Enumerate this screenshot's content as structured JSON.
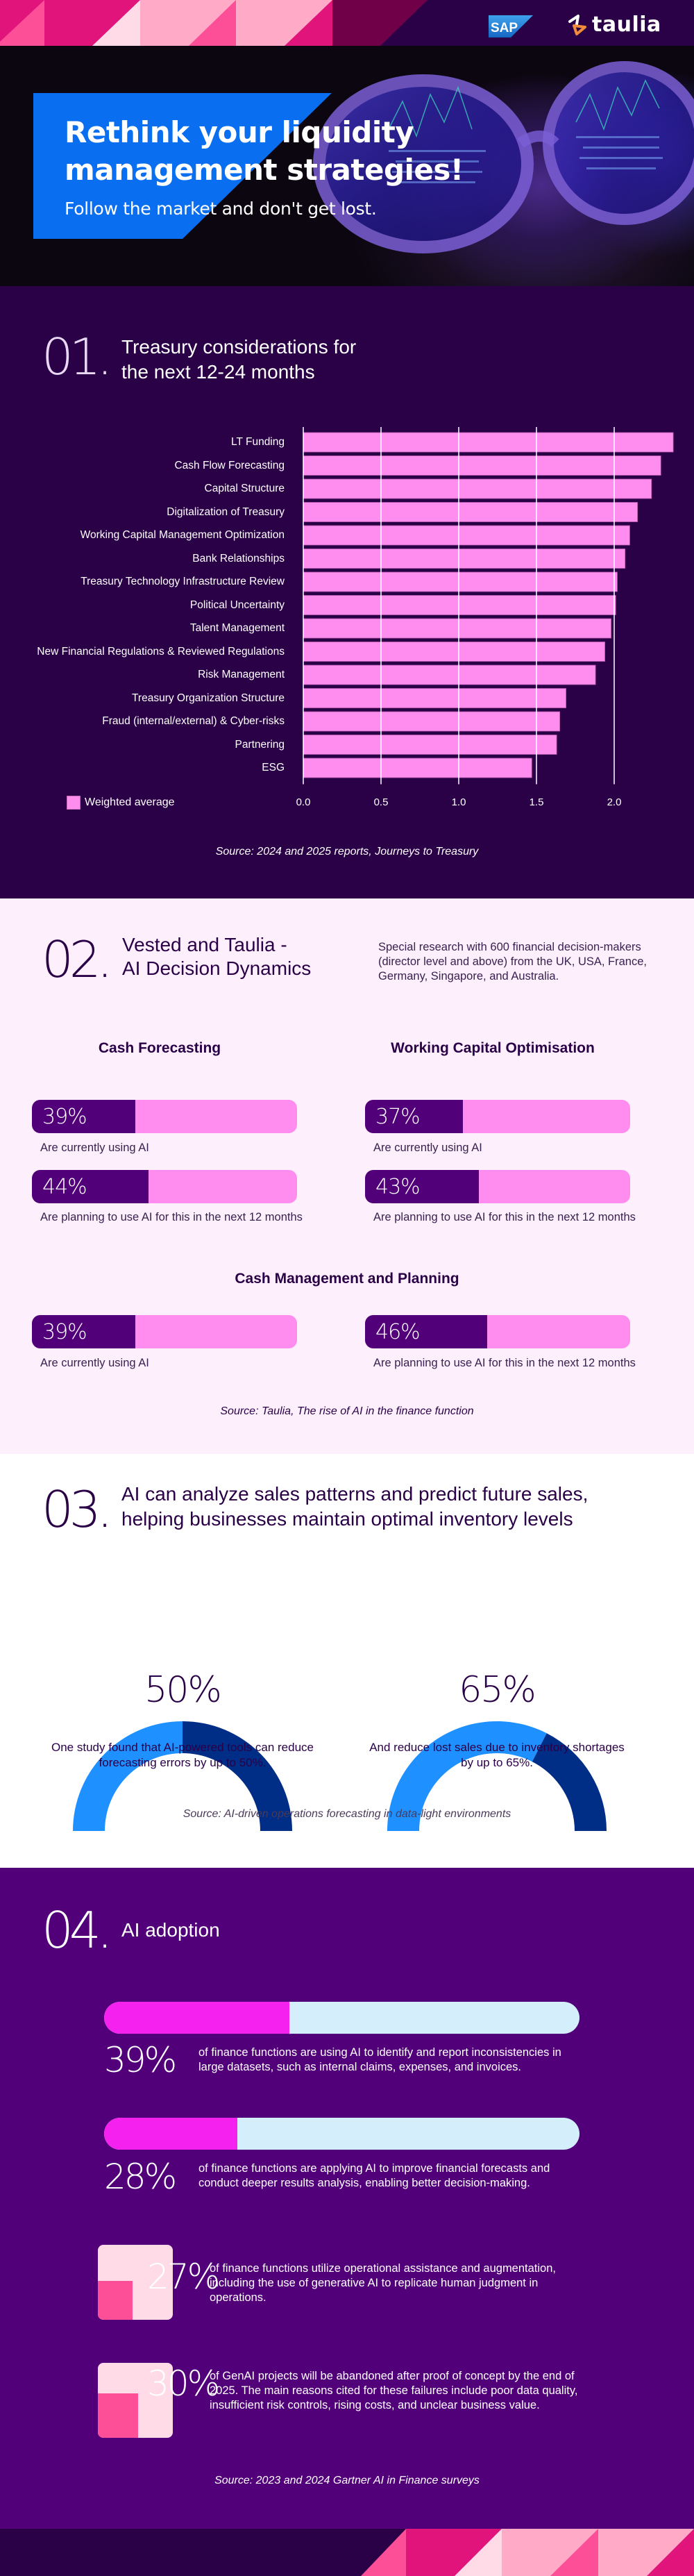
{
  "header": {
    "sap_logo": "SAP",
    "taulia_logo": "taulia",
    "colors": {
      "pink_dark": "#e0147a",
      "pink_mid": "#fc4f97",
      "pink_light": "#ffaac7",
      "pink_pale": "#ffdbe8",
      "maroon": "#700048",
      "navy": "#2a0047"
    }
  },
  "hero": {
    "title_line1": "Rethink your liquidity",
    "title_line2": "management strategies!",
    "subtitle": "Follow the market and don't get lost.",
    "accent": "#0a6ef0"
  },
  "section1": {
    "number": "01.",
    "title_line1": "Treasury considerations for",
    "title_line2": "the next 12-24 months",
    "source": "Source: 2024 and 2025 reports, Journeys to Treasury"
  },
  "chart_data": {
    "type": "bar",
    "orientation": "horizontal",
    "title": "Treasury considerations for the next 12-24 months",
    "categories": [
      "LT Funding",
      "Cash Flow Forecasting",
      "Capital Structure",
      "Digitalization of Treasury",
      "Working Capital Management Optimization",
      "Bank Relationships",
      "Treasury Technology Infrastructure Review",
      "Political Uncertainty",
      "Talent Management",
      "New Financial Regulations & Reviewed Regulations",
      "Risk Management",
      "Treasury Organization Structure",
      "Fraud (internal/external) & Cyber-risks",
      "Partnering",
      "ESG"
    ],
    "series": [
      {
        "name": "Weighted average",
        "color": "#ff8cef",
        "values": [
          2.38,
          2.3,
          2.24,
          2.15,
          2.1,
          2.07,
          2.02,
          2.01,
          1.98,
          1.94,
          1.88,
          1.69,
          1.65,
          1.63,
          1.47
        ]
      }
    ],
    "xlim": [
      0,
      2.4
    ],
    "xticks": [
      "0.0",
      "0.5",
      "1.0",
      "1.5",
      "2.0"
    ],
    "xtick_values": [
      0,
      0.5,
      1.0,
      1.5,
      2.0
    ],
    "grid": true,
    "legend": "bottom-left",
    "xlabel": "",
    "ylabel": ""
  },
  "section2": {
    "number": "02.",
    "title_line1": "Vested and Taulia -",
    "title_line2": "AI Decision Dynamics",
    "description": "Special research with 600 financial decision-makers (director level and above) from the UK, USA, France, Germany, Singapore, and Australia.",
    "groups": [
      {
        "title": "Cash Forecasting",
        "stats": [
          {
            "label": "39%",
            "value": 39,
            "caption": "Are currently using AI"
          },
          {
            "label": "44%",
            "value": 44,
            "caption": "Are planning to use AI for this in the next 12 months"
          }
        ]
      },
      {
        "title": "Working Capital Optimisation",
        "stats": [
          {
            "label": "37%",
            "value": 37,
            "caption": "Are currently using AI"
          },
          {
            "label": "43%",
            "value": 43,
            "caption": "Are planning to use AI for this in the next 12 months"
          }
        ]
      },
      {
        "title": "Cash Management and Planning",
        "stats": [
          {
            "label": "39%",
            "value": 39,
            "caption": "Are currently using AI"
          },
          {
            "label": "46%",
            "value": 46,
            "caption": "Are planning to use AI for this in the next 12 months"
          }
        ]
      }
    ],
    "source": "Source: Taulia, The rise of AI in the finance function"
  },
  "section3": {
    "number": "03.",
    "title_line1": "AI can analyze sales patterns and predict future sales,",
    "title_line2": "helping businesses maintain optimal inventory levels",
    "gauges": [
      {
        "label": "50%",
        "value": 50,
        "caption": "One study found that AI-powered tools can reduce forecasting errors by up to 50%."
      },
      {
        "label": "65%",
        "value": 65,
        "caption": "And reduce lost sales due to inventory shortages by up to 65%."
      }
    ],
    "colors": {
      "light": "#1e90ff",
      "dark": "#002d86"
    },
    "source": "Source: AI-driven operations forecasting in data-light environments"
  },
  "section4": {
    "number": "04.",
    "title": "AI adoption",
    "stats": [
      {
        "label": "39%",
        "value": 39,
        "text": "of finance functions are using AI to identify and report inconsistencies in large datasets, such as internal claims, expenses, and invoices."
      },
      {
        "label": "28%",
        "value": 28,
        "text": "of finance functions are applying AI to improve financial forecasts and conduct deeper results analysis, enabling better decision-making."
      },
      {
        "label": "27%",
        "value": 27,
        "text": "of finance functions utilize operational assistance and augmentation, including the use of generative AI to replicate human judgment in operations."
      },
      {
        "label": "30%",
        "value": 30,
        "text": "of GenAI projects will be abandoned after proof of concept by the end of 2025. The main reasons cited for these failures include poor data quality, insufficient risk controls, rising costs, and unclear business value."
      }
    ],
    "source": "Source: 2023 and 2024 Gartner AI in Finance surveys"
  }
}
